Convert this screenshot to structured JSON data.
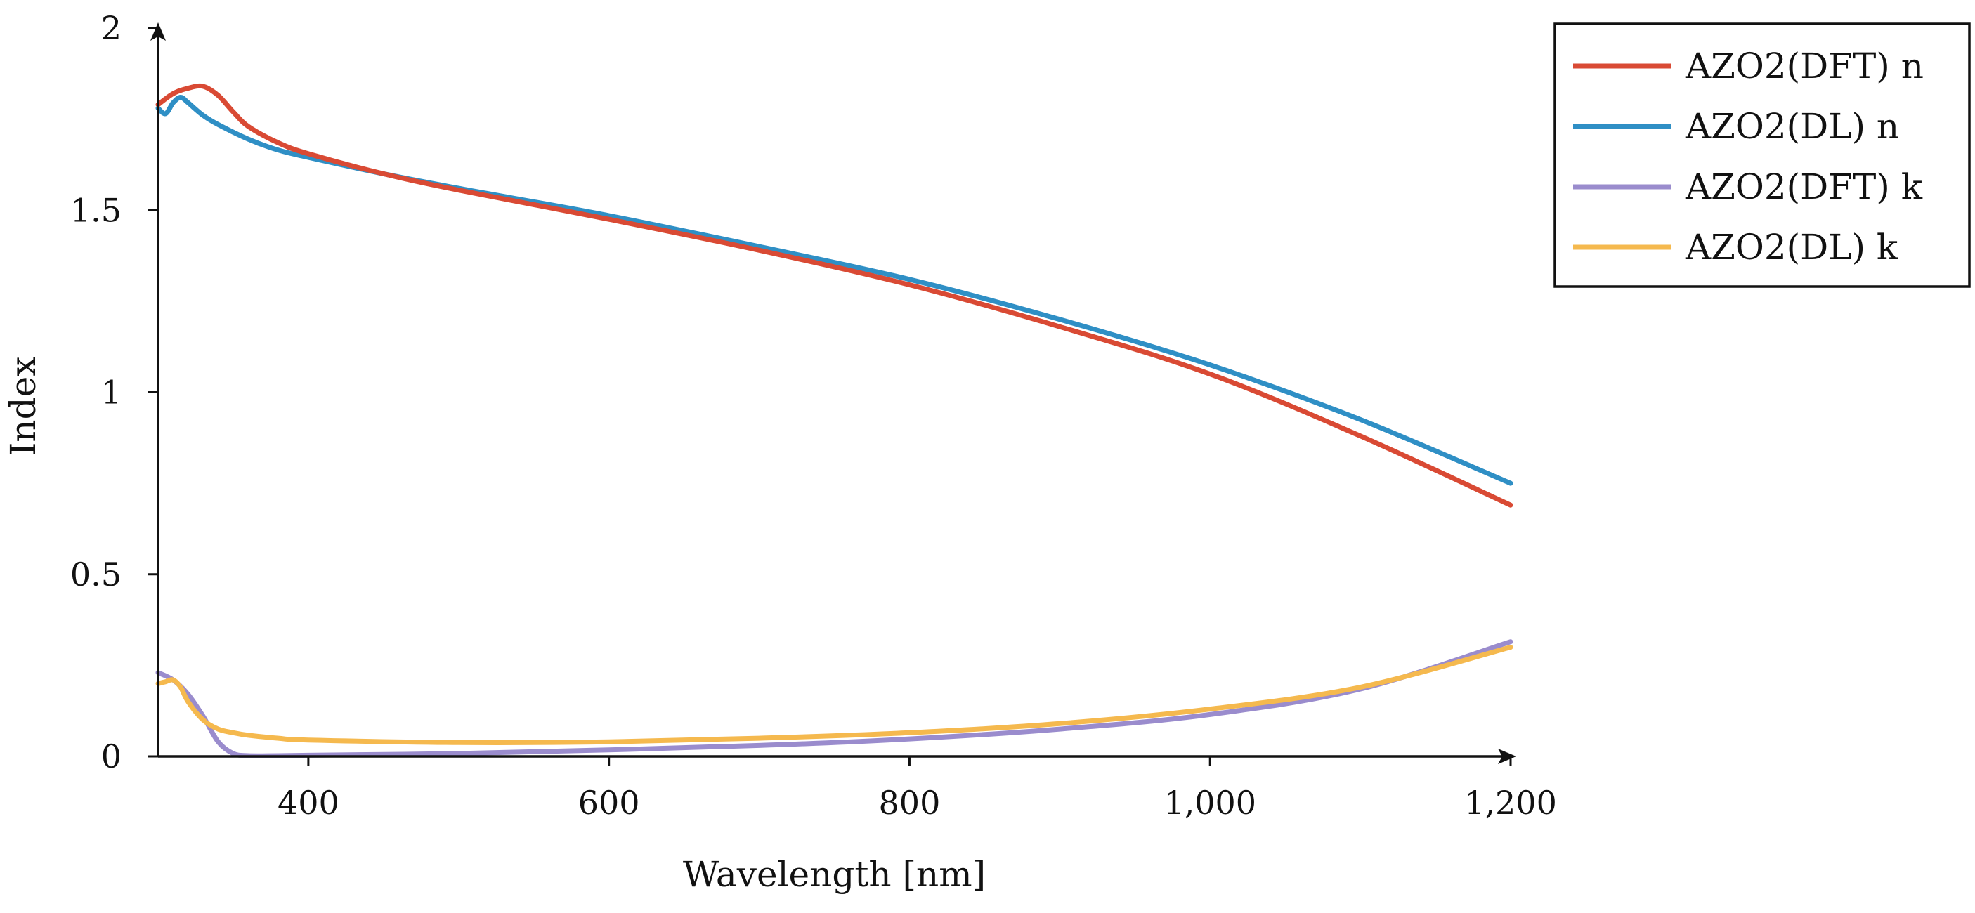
{
  "chart_data": {
    "type": "line",
    "title": "",
    "xlabel": "Wavelength [nm]",
    "ylabel": "Index",
    "xlim": [
      300,
      1200
    ],
    "ylim": [
      0,
      2
    ],
    "xticks": [
      400,
      600,
      800,
      1000,
      1200
    ],
    "xtick_labels": [
      "400",
      "600",
      "800",
      "1,000",
      "1,200"
    ],
    "yticks": [
      0,
      0.5,
      1,
      1.5,
      2
    ],
    "ytick_labels": [
      "0",
      "0.5",
      "1",
      "1.5",
      "2"
    ],
    "grid": false,
    "legend_position": "outside-top-right",
    "series": [
      {
        "name": "AZO2(DFT) n",
        "color": "#d94a34",
        "x": [
          300,
          310,
          320,
          330,
          340,
          350,
          360,
          380,
          400,
          450,
          500,
          600,
          700,
          800,
          900,
          1000,
          1100,
          1200
        ],
        "y": [
          1.79,
          1.82,
          1.835,
          1.84,
          1.815,
          1.77,
          1.73,
          1.685,
          1.655,
          1.6,
          1.555,
          1.475,
          1.39,
          1.295,
          1.18,
          1.05,
          0.88,
          0.69
        ]
      },
      {
        "name": "AZO2(DL) n",
        "color": "#2f8fc5",
        "x": [
          300,
          305,
          310,
          315,
          320,
          330,
          340,
          360,
          380,
          400,
          450,
          500,
          600,
          700,
          800,
          900,
          1000,
          1100,
          1200
        ],
        "y": [
          1.78,
          1.765,
          1.795,
          1.81,
          1.795,
          1.76,
          1.735,
          1.695,
          1.665,
          1.645,
          1.6,
          1.56,
          1.485,
          1.4,
          1.31,
          1.2,
          1.075,
          0.925,
          0.75
        ]
      },
      {
        "name": "AZO2(DFT) k",
        "color": "#9a8ccd",
        "x": [
          300,
          310,
          320,
          330,
          340,
          350,
          360,
          380,
          400,
          500,
          600,
          700,
          800,
          900,
          1000,
          1100,
          1200
        ],
        "y": [
          0.23,
          0.21,
          0.17,
          0.11,
          0.04,
          0.008,
          0.002,
          0.002,
          0.003,
          0.008,
          0.018,
          0.03,
          0.048,
          0.075,
          0.115,
          0.185,
          0.315
        ]
      },
      {
        "name": "AZO2(DL) k",
        "color": "#f5b94e",
        "x": [
          300,
          305,
          310,
          315,
          320,
          330,
          340,
          350,
          360,
          380,
          400,
          500,
          600,
          700,
          800,
          900,
          1000,
          1100,
          1200
        ],
        "y": [
          0.2,
          0.205,
          0.21,
          0.19,
          0.15,
          0.1,
          0.075,
          0.065,
          0.058,
          0.05,
          0.045,
          0.038,
          0.04,
          0.05,
          0.065,
          0.09,
          0.13,
          0.19,
          0.3
        ]
      }
    ]
  }
}
